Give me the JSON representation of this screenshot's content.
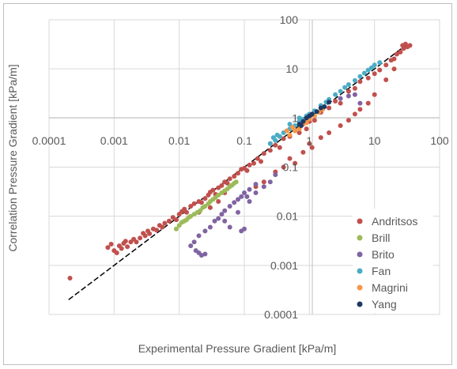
{
  "chart_data": {
    "type": "scatter",
    "xlabel": "Experimental Pressure Gradient [kPa/m]",
    "ylabel": "Correlation Pressure Gradient [kPa/m]",
    "xscale": "log",
    "yscale": "log",
    "xlim": [
      0.0001,
      100
    ],
    "ylim": [
      0.0001,
      100
    ],
    "x_tick_labels": [
      "0.0001",
      "0.001",
      "0.01",
      "0.1",
      "1",
      "10",
      "100"
    ],
    "y_tick_labels": [
      "0.0001",
      "0.001",
      "0.01",
      "0.1",
      "1",
      "10",
      "100"
    ],
    "grid": true,
    "legend": "right",
    "reference_line": {
      "x": [
        0.0002,
        30
      ],
      "y": [
        0.0002,
        30
      ],
      "style": "dashed",
      "color": "#000000"
    },
    "series": [
      {
        "name": "Andritsos",
        "color": "#c0504d",
        "points": [
          [
            0.00021,
            0.00055
          ],
          [
            0.0008,
            0.0023
          ],
          [
            0.0009,
            0.0027
          ],
          [
            0.001,
            0.002
          ],
          [
            0.0011,
            0.0018
          ],
          [
            0.0012,
            0.0025
          ],
          [
            0.0013,
            0.0022
          ],
          [
            0.0014,
            0.0028
          ],
          [
            0.0015,
            0.0031
          ],
          [
            0.0016,
            0.0024
          ],
          [
            0.0018,
            0.003
          ],
          [
            0.002,
            0.0034
          ],
          [
            0.0022,
            0.003
          ],
          [
            0.0025,
            0.0036
          ],
          [
            0.0028,
            0.0045
          ],
          [
            0.003,
            0.004
          ],
          [
            0.0033,
            0.005
          ],
          [
            0.0035,
            0.0044
          ],
          [
            0.004,
            0.0055
          ],
          [
            0.0045,
            0.0052
          ],
          [
            0.005,
            0.0065
          ],
          [
            0.0055,
            0.006
          ],
          [
            0.006,
            0.0072
          ],
          [
            0.007,
            0.008
          ],
          [
            0.008,
            0.0095
          ],
          [
            0.009,
            0.0085
          ],
          [
            0.01,
            0.011
          ],
          [
            0.011,
            0.0125
          ],
          [
            0.012,
            0.014
          ],
          [
            0.013,
            0.012
          ],
          [
            0.015,
            0.016
          ],
          [
            0.017,
            0.018
          ],
          [
            0.02,
            0.02
          ],
          [
            0.022,
            0.019
          ],
          [
            0.025,
            0.023
          ],
          [
            0.028,
            0.027
          ],
          [
            0.03,
            0.031
          ],
          [
            0.033,
            0.034
          ],
          [
            0.036,
            0.028
          ],
          [
            0.04,
            0.038
          ],
          [
            0.045,
            0.042
          ],
          [
            0.05,
            0.05
          ],
          [
            0.055,
            0.047
          ],
          [
            0.06,
            0.058
          ],
          [
            0.07,
            0.065
          ],
          [
            0.08,
            0.075
          ],
          [
            0.09,
            0.09
          ],
          [
            0.1,
            0.095
          ],
          [
            0.11,
            0.085
          ],
          [
            0.12,
            0.11
          ],
          [
            0.14,
            0.12
          ],
          [
            0.16,
            0.15
          ],
          [
            0.18,
            0.13
          ],
          [
            0.2,
            0.19
          ],
          [
            0.25,
            0.22
          ],
          [
            0.3,
            0.28
          ],
          [
            0.35,
            0.25
          ],
          [
            0.4,
            0.38
          ],
          [
            0.5,
            0.42
          ],
          [
            0.6,
            0.55
          ],
          [
            0.7,
            0.5
          ],
          [
            0.8,
            0.75
          ],
          [
            1.0,
            0.85
          ],
          [
            1.2,
            0.9
          ],
          [
            1.5,
            1.3
          ],
          [
            2.0,
            1.6
          ],
          [
            2.5,
            2.2
          ],
          [
            3.0,
            2.0
          ],
          [
            4.0,
            3.5
          ],
          [
            5.0,
            4.0
          ],
          [
            6.0,
            5.5
          ],
          [
            8.0,
            6.5
          ],
          [
            10.0,
            8.0
          ],
          [
            12.0,
            9.5
          ],
          [
            15.0,
            12.0
          ],
          [
            18.0,
            15.0
          ],
          [
            20.0,
            16.0
          ],
          [
            22.0,
            20.0
          ],
          [
            25.0,
            22.0
          ],
          [
            27.0,
            30.0
          ],
          [
            28.0,
            26.0
          ],
          [
            30.0,
            32.0
          ],
          [
            32.0,
            28.0
          ],
          [
            35.0,
            30.0
          ],
          [
            0.15,
            0.04
          ],
          [
            0.2,
            0.05
          ],
          [
            0.3,
            0.08
          ],
          [
            0.4,
            0.1
          ],
          [
            0.5,
            0.15
          ],
          [
            0.6,
            0.12
          ],
          [
            0.8,
            0.2
          ],
          [
            1.0,
            0.3
          ],
          [
            1.5,
            0.4
          ],
          [
            2.0,
            0.5
          ],
          [
            3.0,
            0.7
          ],
          [
            4.0,
            0.9
          ],
          [
            5.0,
            1.2
          ],
          [
            6.0,
            1.5
          ],
          [
            8.0,
            2.0
          ],
          [
            10.0,
            3.0
          ],
          [
            0.25,
            0.3
          ],
          [
            0.03,
            0.015
          ],
          [
            0.04,
            0.02
          ],
          [
            0.05,
            0.03
          ],
          [
            0.02,
            0.012
          ],
          [
            1.1,
            0.25
          ],
          [
            0.9,
            0.6
          ],
          [
            15.0,
            6.0
          ],
          [
            20.0,
            10.0
          ]
        ]
      },
      {
        "name": "Brill",
        "color": "#9bbb59",
        "points": [
          [
            0.009,
            0.0055
          ],
          [
            0.01,
            0.0065
          ],
          [
            0.011,
            0.0075
          ],
          [
            0.012,
            0.008
          ],
          [
            0.013,
            0.0085
          ],
          [
            0.014,
            0.0095
          ],
          [
            0.015,
            0.01
          ],
          [
            0.017,
            0.011
          ],
          [
            0.019,
            0.012
          ],
          [
            0.021,
            0.013
          ],
          [
            0.023,
            0.015
          ],
          [
            0.025,
            0.016
          ],
          [
            0.028,
            0.018
          ],
          [
            0.03,
            0.02
          ],
          [
            0.033,
            0.022
          ],
          [
            0.036,
            0.024
          ],
          [
            0.04,
            0.027
          ],
          [
            0.045,
            0.03
          ],
          [
            0.05,
            0.033
          ],
          [
            0.055,
            0.036
          ],
          [
            0.06,
            0.04
          ],
          [
            0.065,
            0.043
          ],
          [
            0.07,
            0.047
          ],
          [
            0.075,
            0.05
          ]
        ]
      },
      {
        "name": "Brito",
        "color": "#8064a2",
        "points": [
          [
            0.015,
            0.0025
          ],
          [
            0.018,
            0.002
          ],
          [
            0.02,
            0.0018
          ],
          [
            0.022,
            0.0016
          ],
          [
            0.025,
            0.0017
          ],
          [
            0.017,
            0.003
          ],
          [
            0.02,
            0.004
          ],
          [
            0.025,
            0.005
          ],
          [
            0.03,
            0.006
          ],
          [
            0.035,
            0.008
          ],
          [
            0.04,
            0.009
          ],
          [
            0.045,
            0.011
          ],
          [
            0.05,
            0.013
          ],
          [
            0.06,
            0.016
          ],
          [
            0.07,
            0.019
          ],
          [
            0.08,
            0.022
          ],
          [
            0.09,
            0.025
          ],
          [
            0.1,
            0.03
          ],
          [
            0.12,
            0.035
          ],
          [
            0.15,
            0.045
          ],
          [
            0.09,
            0.005
          ],
          [
            0.1,
            0.0055
          ],
          [
            0.06,
            0.006
          ],
          [
            0.05,
            0.008
          ],
          [
            0.12,
            0.02
          ],
          [
            0.15,
            0.03
          ],
          [
            0.2,
            0.04
          ],
          [
            0.25,
            0.05
          ],
          [
            0.3,
            0.07
          ],
          [
            3.0,
            2.5
          ],
          [
            4.0,
            2.8
          ],
          [
            5.0,
            3.0
          ],
          [
            6.0,
            2.0
          ],
          [
            0.08,
            0.012
          ],
          [
            0.11,
            0.025
          ]
        ]
      },
      {
        "name": "Fan",
        "color": "#4bacc6",
        "points": [
          [
            0.25,
            0.3
          ],
          [
            0.3,
            0.35
          ],
          [
            0.35,
            0.42
          ],
          [
            0.4,
            0.5
          ],
          [
            0.45,
            0.55
          ],
          [
            0.5,
            0.6
          ],
          [
            0.6,
            0.7
          ],
          [
            0.7,
            0.85
          ],
          [
            0.8,
            0.95
          ],
          [
            0.9,
            1.1
          ],
          [
            1.0,
            1.2
          ],
          [
            1.2,
            1.4
          ],
          [
            1.5,
            1.8
          ],
          [
            1.8,
            2.1
          ],
          [
            2.0,
            2.4
          ],
          [
            2.5,
            3.0
          ],
          [
            3.0,
            3.5
          ],
          [
            3.5,
            4.2
          ],
          [
            4.0,
            4.8
          ],
          [
            5.0,
            5.8
          ],
          [
            6.0,
            7.0
          ],
          [
            7.0,
            8.2
          ],
          [
            8.0,
            9.5
          ],
          [
            9.0,
            10.5
          ],
          [
            10.0,
            12.0
          ],
          [
            12.0,
            13.5
          ],
          [
            0.28,
            0.4
          ],
          [
            0.32,
            0.45
          ],
          [
            0.5,
            0.75
          ],
          [
            0.7,
            1.0
          ]
        ]
      },
      {
        "name": "Magrini",
        "color": "#f79646",
        "points": [
          [
            0.5,
            0.45
          ],
          [
            0.6,
            0.55
          ],
          [
            0.7,
            0.6
          ],
          [
            0.8,
            0.75
          ],
          [
            0.9,
            0.8
          ],
          [
            1.0,
            0.95
          ],
          [
            1.2,
            1.1
          ],
          [
            1.4,
            1.3
          ],
          [
            1.6,
            1.5
          ],
          [
            0.45,
            0.55
          ],
          [
            0.55,
            0.65
          ]
        ]
      },
      {
        "name": "Yang",
        "color": "#1f3864",
        "points": [
          [
            0.8,
            0.85
          ],
          [
            0.9,
            1.0
          ],
          [
            1.0,
            1.1
          ],
          [
            1.1,
            1.2
          ],
          [
            1.3,
            1.35
          ],
          [
            1.5,
            1.6
          ],
          [
            1.7,
            1.7
          ],
          [
            2.0,
            2.1
          ],
          [
            0.7,
            0.75
          ],
          [
            0.75,
            0.7
          ]
        ]
      }
    ]
  }
}
